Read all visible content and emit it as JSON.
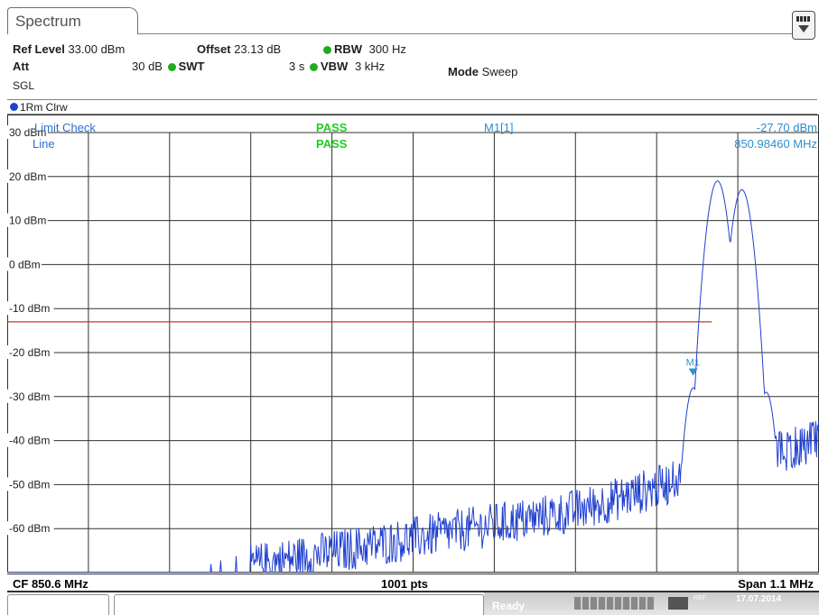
{
  "tab": {
    "label": "Spectrum"
  },
  "header": {
    "ref_level_label": "Ref Level",
    "ref_level_value": "33.00 dBm",
    "offset_label": "Offset",
    "offset_value": "23.13 dB",
    "rbw_label": "RBW",
    "rbw_value": "300 Hz",
    "att_label": "Att",
    "att_value": "30 dB",
    "swt_label": "SWT",
    "swt_value": "3 s",
    "vbw_label": "VBW",
    "vbw_value": "3 kHz",
    "mode_label": "Mode",
    "mode_value": "Sweep",
    "sgl_label": "SGL",
    "status_dot_color": "#22aa22"
  },
  "trace": {
    "label": "1Rm Clrw",
    "color": "#2040d0"
  },
  "plot": {
    "limit_check_label": "Limit Check",
    "line_label": "Line",
    "pass_1": "PASS",
    "pass_2": "PASS",
    "pass_color": "#22cc22",
    "marker_label": "M1[1]",
    "marker_level": "-27.70 dBm",
    "marker_freq": "850.98460 MHz",
    "marker_tag": "M1",
    "marker_color": "#2e8fd0"
  },
  "chart_data": {
    "type": "line",
    "ylim": [
      -70,
      30
    ],
    "xlim": [
      0,
      1000
    ],
    "y_ticks": [
      30,
      20,
      10,
      0,
      -10,
      -20,
      -30,
      -40,
      -50,
      -60
    ],
    "y_tick_labels": [
      "30 dBm",
      "20 dBm",
      "10 dBm",
      "0 dBm",
      "-10 dBm",
      "-20 dBm",
      "-30 dBm",
      "-40 dBm",
      "-50 dBm",
      "-60 dBm"
    ],
    "grid": true,
    "x_divisions": 10,
    "limit_line_dbm": -13,
    "limit_line_color": "#d03020",
    "trace_color": "#2040d0",
    "marker": {
      "x_point": 845,
      "y_dbm": -27.7
    },
    "peaks": [
      {
        "x_point": 845,
        "y_dbm": -28
      },
      {
        "x_point": 875,
        "y_dbm": 19
      },
      {
        "x_point": 905,
        "y_dbm": 17
      },
      {
        "x_point": 935,
        "y_dbm": -29
      }
    ]
  },
  "bottom": {
    "cf": "CF 850.6 MHz",
    "pts": "1001 pts",
    "span": "Span 1.1 MHz"
  },
  "status": {
    "ready": "Ready",
    "ref": "REF",
    "date": "17.07.2014"
  }
}
